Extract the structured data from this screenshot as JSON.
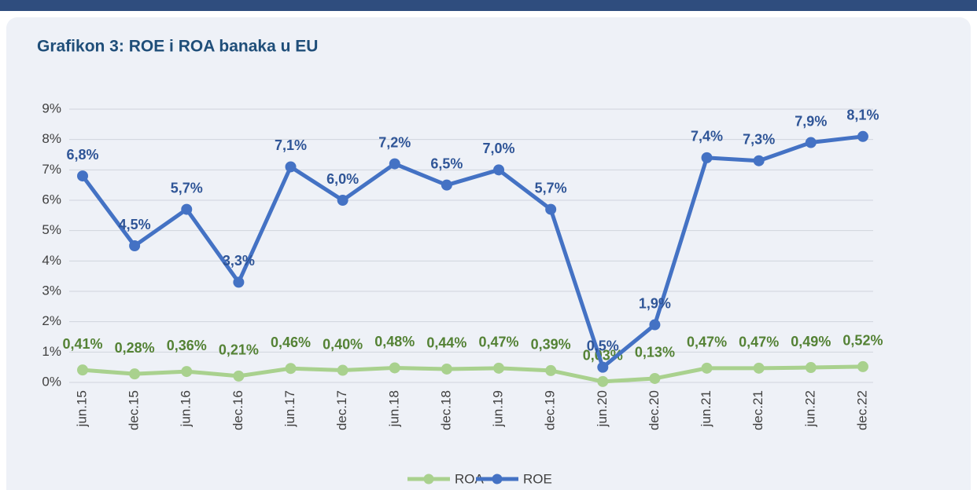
{
  "chart_data": {
    "type": "line",
    "title": "Grafikon 3: ROE i ROA banaka u EU",
    "categories": [
      "jun.15",
      "dec.15",
      "jun.16",
      "dec.16",
      "jun.17",
      "dec.17",
      "jun.18",
      "dec.18",
      "jun.19",
      "dec.19",
      "jun.20",
      "dec.20",
      "jun.21",
      "dec.21",
      "jun.22",
      "dec.22"
    ],
    "series": [
      {
        "name": "ROA",
        "color": "#a9d18e",
        "label_color": "#548235",
        "values": [
          0.41,
          0.28,
          0.36,
          0.21,
          0.46,
          0.4,
          0.48,
          0.44,
          0.47,
          0.39,
          0.03,
          0.13,
          0.47,
          0.47,
          0.49,
          0.52
        ],
        "value_labels": [
          "0,41%",
          "0,28%",
          "0,36%",
          "0,21%",
          "0,46%",
          "0,40%",
          "0,48%",
          "0,44%",
          "0,47%",
          "0,39%",
          "0,03%",
          "0,13%",
          "0,47%",
          "0,47%",
          "0,49%",
          "0,52%"
        ]
      },
      {
        "name": "ROE",
        "color": "#4472c4",
        "label_color": "#2f5597",
        "values": [
          6.8,
          4.5,
          5.7,
          3.3,
          7.1,
          6.0,
          7.2,
          6.5,
          7.0,
          5.7,
          0.5,
          1.9,
          7.4,
          7.3,
          7.9,
          8.1
        ],
        "value_labels": [
          "6,8%",
          "4,5%",
          "5,7%",
          "3,3%",
          "7,1%",
          "6,0%",
          "7,2%",
          "6,5%",
          "7,0%",
          "5,7%",
          "0,5%",
          "1,9%",
          "7,4%",
          "7,3%",
          "7,9%",
          "8,1%"
        ]
      }
    ],
    "ylim": [
      0,
      9
    ],
    "yticks": [
      {
        "value": 0,
        "label": "0%"
      },
      {
        "value": 1,
        "label": "1%"
      },
      {
        "value": 2,
        "label": "2%"
      },
      {
        "value": 3,
        "label": "3%"
      },
      {
        "value": 4,
        "label": "4%"
      },
      {
        "value": 5,
        "label": "5%"
      },
      {
        "value": 6,
        "label": "6%"
      },
      {
        "value": 7,
        "label": "7%"
      },
      {
        "value": 8,
        "label": "8%"
      },
      {
        "value": 9,
        "label": "9%"
      }
    ],
    "grid": true,
    "legend": "bottom"
  }
}
